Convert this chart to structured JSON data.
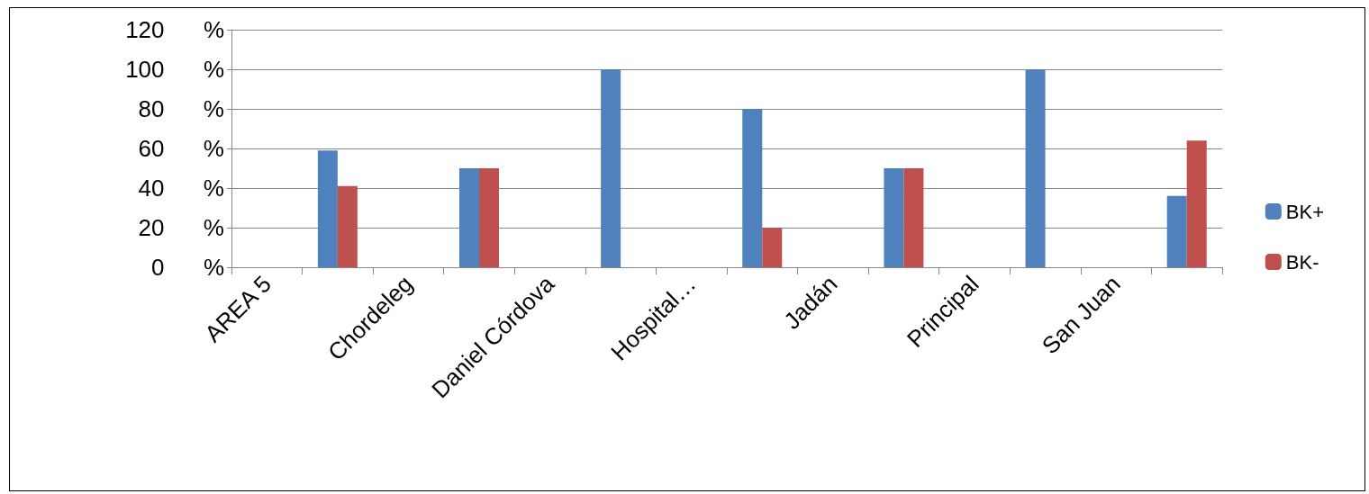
{
  "chart_data": {
    "type": "bar",
    "categories": [
      "AREA 5",
      null,
      "Chordeleg",
      null,
      "Daniel Córdova",
      null,
      "Hospital…",
      null,
      "Jadán",
      null,
      "Principal",
      null,
      "San Juan",
      null
    ],
    "series": [
      {
        "name": "BK+",
        "color": "#4f81bd",
        "values": [
          null,
          59,
          null,
          50,
          null,
          100,
          null,
          80,
          null,
          50,
          null,
          100,
          null,
          36
        ]
      },
      {
        "name": "BK-",
        "color": "#c0504d",
        "values": [
          null,
          41,
          null,
          50,
          null,
          null,
          null,
          20,
          null,
          50,
          null,
          null,
          null,
          64
        ]
      }
    ],
    "ylim": [
      0,
      120
    ],
    "yticks": [
      {
        "value": 0,
        "label": "0 %"
      },
      {
        "value": 20,
        "label": "20 %"
      },
      {
        "value": 40,
        "label": "40 %"
      },
      {
        "value": 60,
        "label": "60 %"
      },
      {
        "value": 80,
        "label": "80 %"
      },
      {
        "value": 100,
        "label": "100 %"
      },
      {
        "value": 120,
        "label": "120 %"
      }
    ],
    "grid": "y",
    "legend": "right"
  }
}
